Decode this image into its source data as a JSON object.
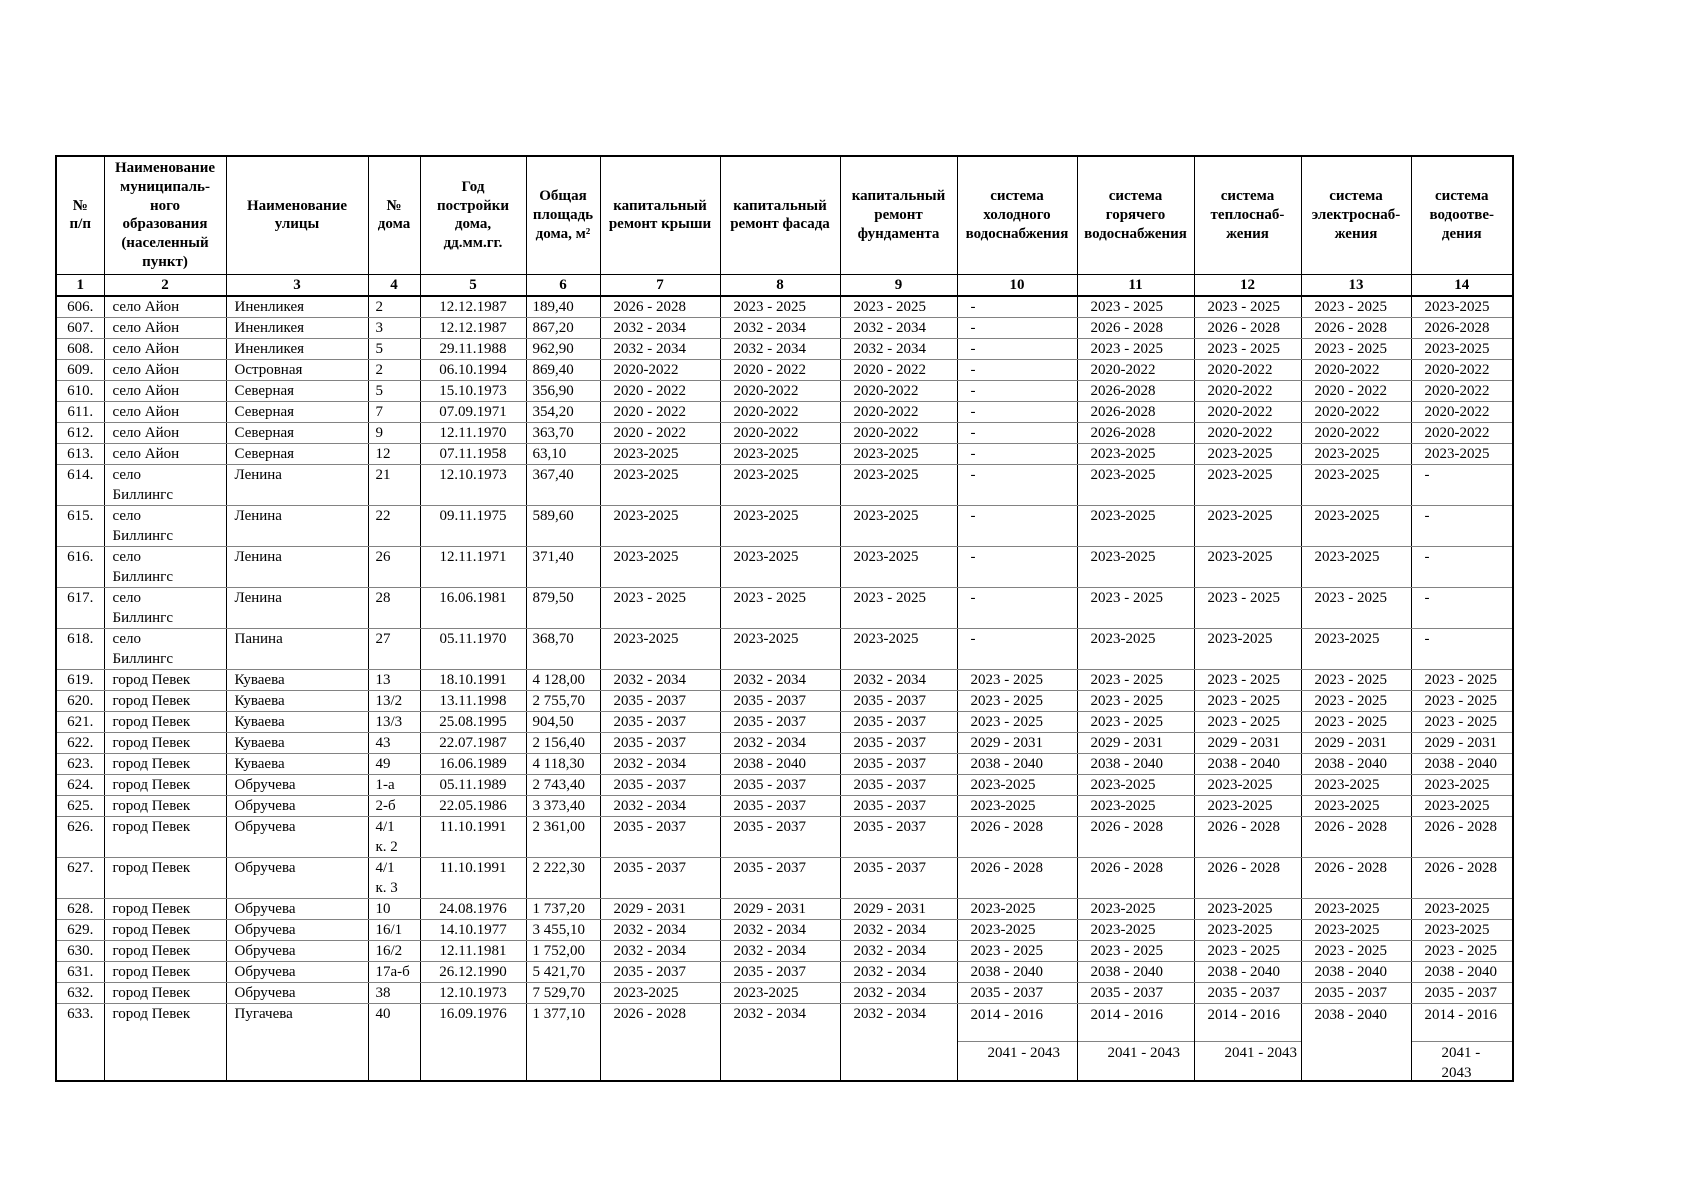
{
  "table": {
    "columns": [
      {
        "num": "1",
        "label": "№\nп/п"
      },
      {
        "num": "2",
        "label": "Наименование\nмуниципаль-\nного\nобразования\n(населенный\nпункт)"
      },
      {
        "num": "3",
        "label": "Наименование\nулицы"
      },
      {
        "num": "4",
        "label": "№\nдома"
      },
      {
        "num": "5",
        "label": "Год\nпостройки\nдома,\nдд.мм.гг."
      },
      {
        "num": "6",
        "label": "Общая\nплощадь\nдома, м²"
      },
      {
        "num": "7",
        "label": "капитальный\nремонт крыши"
      },
      {
        "num": "8",
        "label": "капитальный\nремонт фасада"
      },
      {
        "num": "9",
        "label": "капитальный\nремонт\nфундамента"
      },
      {
        "num": "10",
        "label": "система\nхолодного\nводоснабжения"
      },
      {
        "num": "11",
        "label": "система\nгорячего\nводоснабжения"
      },
      {
        "num": "12",
        "label": "система\nтеплоснаб-\nжения"
      },
      {
        "num": "13",
        "label": "система\nэлектроснаб-\nжения"
      },
      {
        "num": "14",
        "label": "система\nводоотве-\nдения"
      }
    ],
    "rows": [
      {
        "cells": [
          "606.",
          "село Айон",
          "Иненликея",
          "2",
          "12.12.1987",
          "189,40",
          "2026 - 2028",
          "2023 - 2025",
          "2023 - 2025",
          "-",
          "2023 - 2025",
          "2023 - 2025",
          "2023 - 2025",
          "2023-2025"
        ]
      },
      {
        "cells": [
          "607.",
          "село Айон",
          "Иненликея",
          "3",
          "12.12.1987",
          "867,20",
          "2032 - 2034",
          "2032 - 2034",
          "2032 - 2034",
          "-",
          "2026 - 2028",
          "2026 - 2028",
          "2026 - 2028",
          "2026-2028"
        ]
      },
      {
        "cells": [
          "608.",
          "село Айон",
          "Иненликея",
          "5",
          "29.11.1988",
          "962,90",
          "2032 - 2034",
          "2032 - 2034",
          "2032 - 2034",
          "-",
          "2023 - 2025",
          "2023 - 2025",
          "2023 - 2025",
          "2023-2025"
        ]
      },
      {
        "cells": [
          "609.",
          "село Айон",
          "Островная",
          "2",
          "06.10.1994",
          "869,40",
          "2020-2022",
          "2020 - 2022",
          "2020 - 2022",
          "-",
          "2020-2022",
          "2020-2022",
          "2020-2022",
          "2020-2022"
        ]
      },
      {
        "cells": [
          "610.",
          "село Айон",
          "Северная",
          "5",
          "15.10.1973",
          "356,90",
          "2020 - 2022",
          "2020-2022",
          "2020-2022",
          "-",
          "2026-2028",
          "2020-2022",
          "2020 - 2022",
          "2020-2022"
        ]
      },
      {
        "cells": [
          "611.",
          "село Айон",
          "Северная",
          "7",
          "07.09.1971",
          "354,20",
          "2020 - 2022",
          "2020-2022",
          "2020-2022",
          "-",
          "2026-2028",
          "2020-2022",
          "2020-2022",
          "2020-2022"
        ]
      },
      {
        "cells": [
          "612.",
          "село Айон",
          "Северная",
          "9",
          "12.11.1970",
          "363,70",
          "2020 - 2022",
          "2020-2022",
          "2020-2022",
          "-",
          "2026-2028",
          "2020-2022",
          "2020-2022",
          "2020-2022"
        ]
      },
      {
        "cells": [
          "613.",
          "село Айон",
          "Северная",
          "12",
          "07.11.1958",
          "63,10",
          "2023-2025",
          "2023-2025",
          "2023-2025",
          "-",
          "2023-2025",
          "2023-2025",
          "2023-2025",
          "2023-2025"
        ]
      },
      {
        "cells": [
          "614.",
          "село\nБиллингс",
          "Ленина",
          "21",
          "12.10.1973",
          "367,40",
          "2023-2025",
          "2023-2025",
          "2023-2025",
          "-",
          "2023-2025",
          "2023-2025",
          "2023-2025",
          "-"
        ]
      },
      {
        "cells": [
          "615.",
          "село\nБиллингс",
          "Ленина",
          "22",
          "09.11.1975",
          "589,60",
          "2023-2025",
          "2023-2025",
          "2023-2025",
          "-",
          "2023-2025",
          "2023-2025",
          "2023-2025",
          "-"
        ]
      },
      {
        "cells": [
          "616.",
          "село\nБиллингс",
          "Ленина",
          "26",
          "12.11.1971",
          "371,40",
          "2023-2025",
          "2023-2025",
          "2023-2025",
          "-",
          "2023-2025",
          "2023-2025",
          "2023-2025",
          "-"
        ]
      },
      {
        "cells": [
          "617.",
          "село\nБиллингс",
          "Ленина",
          "28",
          "16.06.1981",
          "879,50",
          "2023 - 2025",
          "2023 - 2025",
          "2023 - 2025",
          "-",
          "2023 - 2025",
          "2023 - 2025",
          "2023 - 2025",
          "-"
        ]
      },
      {
        "cells": [
          "618.",
          "село\nБиллингс",
          "Панина",
          "27",
          "05.11.1970",
          "368,70",
          "2023-2025",
          "2023-2025",
          "2023-2025",
          "-",
          "2023-2025",
          "2023-2025",
          "2023-2025",
          "-"
        ]
      },
      {
        "cells": [
          "619.",
          "город Певек",
          "Куваева",
          "13",
          "18.10.1991",
          "4 128,00",
          "2032 - 2034",
          "2032 - 2034",
          "2032 - 2034",
          "2023 - 2025",
          "2023 - 2025",
          "2023 - 2025",
          "2023 - 2025",
          "2023 - 2025"
        ]
      },
      {
        "cells": [
          "620.",
          "город Певек",
          "Куваева",
          "13/2",
          "13.11.1998",
          "2 755,70",
          "2035 - 2037",
          "2035 - 2037",
          "2035 - 2037",
          "2023 - 2025",
          "2023 - 2025",
          "2023 - 2025",
          "2023 - 2025",
          "2023 - 2025"
        ]
      },
      {
        "cells": [
          "621.",
          "город Певек",
          "Куваева",
          "13/3",
          "25.08.1995",
          "904,50",
          "2035 - 2037",
          "2035 - 2037",
          "2035 - 2037",
          "2023 - 2025",
          "2023 - 2025",
          "2023 - 2025",
          "2023 - 2025",
          "2023 - 2025"
        ]
      },
      {
        "cells": [
          "622.",
          "город Певек",
          "Куваева",
          "43",
          "22.07.1987",
          "2 156,40",
          "2035 - 2037",
          "2032 - 2034",
          "2035 - 2037",
          "2029 - 2031",
          "2029 - 2031",
          "2029 - 2031",
          "2029 - 2031",
          "2029 - 2031"
        ]
      },
      {
        "cells": [
          "623.",
          "город Певек",
          "Куваева",
          "49",
          "16.06.1989",
          "4 118,30",
          "2032 - 2034",
          "2038 - 2040",
          "2035 - 2037",
          "2038 - 2040",
          "2038 - 2040",
          "2038 - 2040",
          "2038 - 2040",
          "2038 - 2040"
        ]
      },
      {
        "cells": [
          "624.",
          "город Певек",
          "Обручева",
          "1-а",
          "05.11.1989",
          "2 743,40",
          "2035 - 2037",
          "2035 - 2037",
          "2035 - 2037",
          "2023-2025",
          "2023-2025",
          "2023-2025",
          "2023-2025",
          "2023-2025"
        ]
      },
      {
        "cells": [
          "625.",
          "город Певек",
          "Обручева",
          "2-б",
          "22.05.1986",
          "3 373,40",
          "2032 - 2034",
          "2035 - 2037",
          "2035 - 2037",
          "2023-2025",
          "2023-2025",
          "2023-2025",
          "2023-2025",
          "2023-2025"
        ]
      },
      {
        "cells": [
          "626.",
          "город Певек",
          "Обручева",
          "4/1\nк. 2",
          "11.10.1991",
          "2 361,00",
          "2035 - 2037",
          "2035 - 2037",
          "2035 - 2037",
          "2026 - 2028",
          "2026 - 2028",
          "2026 - 2028",
          "2026 - 2028",
          "2026 - 2028"
        ]
      },
      {
        "cells": [
          "627.",
          "город Певек",
          "Обручева",
          "4/1\nк. 3",
          "11.10.1991",
          "2 222,30",
          "2035 - 2037",
          "2035 - 2037",
          "2035 - 2037",
          "2026 - 2028",
          "2026 - 2028",
          "2026 - 2028",
          "2026 - 2028",
          "2026 - 2028"
        ]
      },
      {
        "cells": [
          "628.",
          "город Певек",
          "Обручева",
          "10",
          "24.08.1976",
          "1 737,20",
          "2029 - 2031",
          "2029 - 2031",
          "2029 - 2031",
          "2023-2025",
          "2023-2025",
          "2023-2025",
          "2023-2025",
          "2023-2025"
        ]
      },
      {
        "cells": [
          "629.",
          "город Певек",
          "Обручева",
          "16/1",
          "14.10.1977",
          "3 455,10",
          "2032 - 2034",
          "2032 - 2034",
          "2032 - 2034",
          "2023-2025",
          "2023-2025",
          "2023-2025",
          "2023-2025",
          "2023-2025"
        ]
      },
      {
        "cells": [
          "630.",
          "город Певек",
          "Обручева",
          "16/2",
          "12.11.1981",
          "1 752,00",
          "2032 - 2034",
          "2032 - 2034",
          "2032 - 2034",
          "2023 - 2025",
          "2023 - 2025",
          "2023 - 2025",
          "2023 - 2025",
          "2023 - 2025"
        ]
      },
      {
        "cells": [
          "631.",
          "город Певек",
          "Обручева",
          "17а-б",
          "26.12.1990",
          "5 421,70",
          "2035 - 2037",
          "2035 - 2037",
          "2032 - 2034",
          "2038 - 2040",
          "2038 - 2040",
          "2038 - 2040",
          "2038 - 2040",
          "2038 - 2040"
        ]
      },
      {
        "cells": [
          "632.",
          "город Певек",
          "Обручева",
          "38",
          "12.10.1973",
          "7 529,70",
          "2023-2025",
          "2023-2025",
          "2032 - 2034",
          "2035 - 2037",
          "2035 - 2037",
          "2035 - 2037",
          "2035 - 2037",
          "2035 - 2037"
        ]
      },
      {
        "cells": [
          "633.",
          "город Певек",
          "Пугачева",
          "40",
          "16.09.1976",
          "1 377,10",
          "2026 - 2028",
          "2032 - 2034",
          "2032 - 2034",
          {
            "top": "2014 - 2016",
            "bottom": "2041 - 2043",
            "divided": true
          },
          {
            "top": "2014 - 2016",
            "bottom": "2041 - 2043",
            "divided": true
          },
          {
            "top": "2014 - 2016",
            "bottom": "2041 - 2043",
            "divided": true
          },
          {
            "top": "2038 - 2040",
            "bottom": "",
            "divided": false
          },
          {
            "top": "2014 - 2016",
            "bottom": "2041 - 2043",
            "divided": true
          }
        ]
      }
    ]
  }
}
